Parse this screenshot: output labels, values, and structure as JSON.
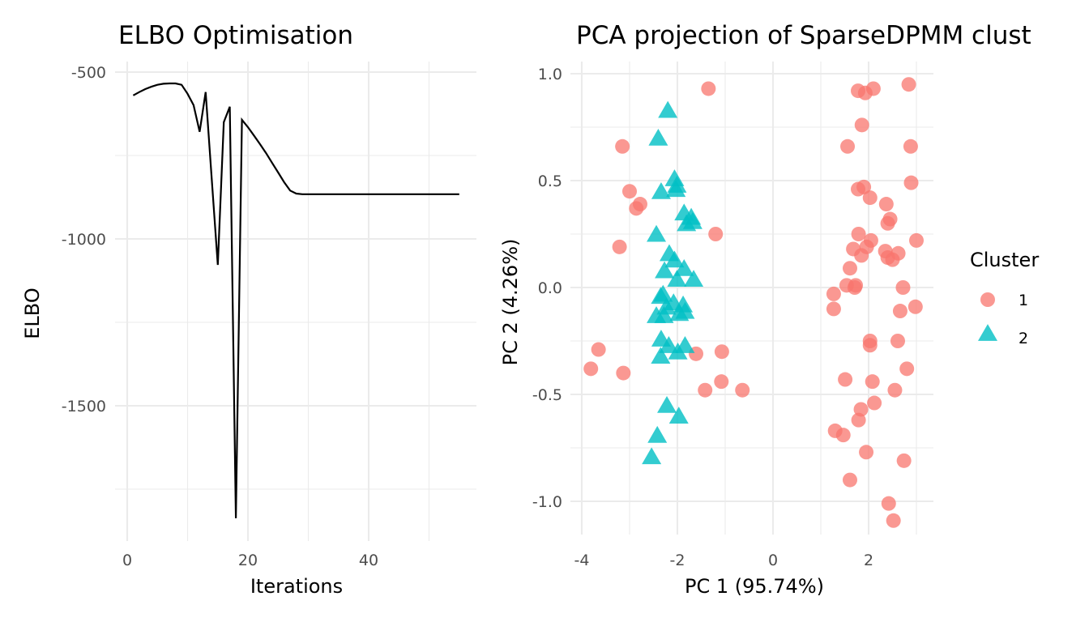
{
  "chart_data": [
    {
      "type": "line",
      "title": "ELBO Optimisation",
      "xlabel": "Iterations",
      "ylabel": "ELBO",
      "xlim": [
        -1,
        58
      ],
      "ylim": [
        -1900,
        -480
      ],
      "x_ticks": [
        0,
        20,
        40
      ],
      "x_tick_labels": [
        "0",
        "20",
        "40"
      ],
      "x_minor": [
        10,
        30,
        50
      ],
      "y_ticks": [
        -500,
        -1000,
        -1500
      ],
      "y_tick_labels": [
        "-500",
        "-1000",
        "-1500"
      ],
      "y_minor": [
        -750,
        -1250,
        -1750
      ],
      "grid": true,
      "line_color": "#000000",
      "series": [
        {
          "name": "ELBO",
          "x": [
            1,
            2,
            3,
            4,
            5,
            6,
            7,
            8,
            9,
            10,
            11,
            12,
            13,
            14,
            15,
            16,
            17,
            18,
            19,
            20,
            21,
            22,
            23,
            24,
            25,
            26,
            27,
            28,
            29,
            30,
            31,
            32,
            33,
            34,
            35,
            36,
            37,
            38,
            39,
            40,
            41,
            42,
            43,
            44,
            45,
            46,
            47,
            48,
            49,
            50,
            51,
            52,
            53,
            54,
            55
          ],
          "y": [
            -570,
            -560,
            -551,
            -544,
            -538,
            -535,
            -534,
            -534,
            -538,
            -565,
            -599,
            -679,
            -560,
            -820,
            -1078,
            -650,
            -604,
            -1837,
            -643,
            -665,
            -690,
            -716,
            -743,
            -772,
            -801,
            -830,
            -855,
            -864,
            -866,
            -866,
            -866,
            -866,
            -866,
            -866,
            -866,
            -866,
            -866,
            -866,
            -866,
            -866,
            -866,
            -866,
            -866,
            -866,
            -866,
            -866,
            -866,
            -866,
            -866,
            -866,
            -866,
            -866,
            -866,
            -866,
            -866
          ]
        }
      ]
    },
    {
      "type": "scatter",
      "title": "PCA projection of SparseDPMM clust",
      "xlabel": "PC 1 (95.74%)",
      "ylabel": "PC 2 (4.26%)",
      "xlim": [
        -4.05,
        3.4
      ],
      "ylim": [
        -1.14,
        1.05
      ],
      "x_ticks": [
        -4,
        -2,
        0,
        2
      ],
      "x_tick_labels": [
        "-4",
        "-2",
        "0",
        "2"
      ],
      "x_minor": [
        -3,
        -1,
        1,
        3
      ],
      "y_ticks": [
        1.0,
        0.5,
        0.0,
        -0.5,
        -1.0
      ],
      "y_tick_labels": [
        "1.0",
        "0.5",
        "0.0",
        "-0.5",
        "-1.0"
      ],
      "y_minor": [
        0.75,
        0.25,
        -0.25,
        -0.75
      ],
      "grid": true,
      "legend": {
        "title": "Cluster",
        "placement": "right",
        "entries": [
          {
            "label": "1",
            "shape": "circle",
            "color": "#F8766D"
          },
          {
            "label": "2",
            "shape": "triangle",
            "color": "#00BFC4"
          }
        ]
      },
      "series": [
        {
          "name": "1",
          "shape": "circle",
          "color": "#F8766D",
          "points": [
            [
              -1.35,
              0.93
            ],
            [
              -3.15,
              0.66
            ],
            [
              -3.0,
              0.45
            ],
            [
              -2.78,
              0.39
            ],
            [
              -2.86,
              0.37
            ],
            [
              -3.21,
              0.19
            ],
            [
              -1.2,
              0.25
            ],
            [
              -3.65,
              -0.29
            ],
            [
              -3.81,
              -0.38
            ],
            [
              -3.13,
              -0.4
            ],
            [
              -1.61,
              -0.31
            ],
            [
              -1.07,
              -0.3
            ],
            [
              -1.08,
              -0.44
            ],
            [
              -1.42,
              -0.48
            ],
            [
              -0.64,
              -0.48
            ],
            [
              1.78,
              0.92
            ],
            [
              2.1,
              0.93
            ],
            [
              1.93,
              0.91
            ],
            [
              2.84,
              0.95
            ],
            [
              1.86,
              0.76
            ],
            [
              1.56,
              0.66
            ],
            [
              2.88,
              0.66
            ],
            [
              2.89,
              0.49
            ],
            [
              1.78,
              0.46
            ],
            [
              1.9,
              0.47
            ],
            [
              2.03,
              0.42
            ],
            [
              2.37,
              0.39
            ],
            [
              2.45,
              0.32
            ],
            [
              2.4,
              0.3
            ],
            [
              3.0,
              0.22
            ],
            [
              1.79,
              0.25
            ],
            [
              2.05,
              0.22
            ],
            [
              1.96,
              0.19
            ],
            [
              1.68,
              0.18
            ],
            [
              1.85,
              0.15
            ],
            [
              2.35,
              0.17
            ],
            [
              2.4,
              0.14
            ],
            [
              2.5,
              0.13
            ],
            [
              2.62,
              0.16
            ],
            [
              1.61,
              0.09
            ],
            [
              1.54,
              0.01
            ],
            [
              1.73,
              0.01
            ],
            [
              1.71,
              0.0
            ],
            [
              1.27,
              -0.03
            ],
            [
              1.27,
              -0.1
            ],
            [
              2.72,
              0.0
            ],
            [
              2.66,
              -0.11
            ],
            [
              2.98,
              -0.09
            ],
            [
              2.03,
              -0.25
            ],
            [
              2.03,
              -0.27
            ],
            [
              2.61,
              -0.25
            ],
            [
              2.8,
              -0.38
            ],
            [
              1.51,
              -0.43
            ],
            [
              2.08,
              -0.44
            ],
            [
              2.55,
              -0.48
            ],
            [
              2.12,
              -0.54
            ],
            [
              1.84,
              -0.57
            ],
            [
              1.79,
              -0.62
            ],
            [
              1.3,
              -0.67
            ],
            [
              1.47,
              -0.69
            ],
            [
              1.95,
              -0.77
            ],
            [
              2.74,
              -0.81
            ],
            [
              1.61,
              -0.9
            ],
            [
              2.42,
              -1.01
            ],
            [
              2.52,
              -1.09
            ]
          ]
        },
        {
          "name": "2",
          "shape": "triangle",
          "color": "#00BFC4",
          "points": [
            [
              -2.2,
              0.82
            ],
            [
              -2.4,
              0.69
            ],
            [
              -2.06,
              0.5
            ],
            [
              -2.01,
              0.47
            ],
            [
              -2.34,
              0.44
            ],
            [
              -2.03,
              0.45
            ],
            [
              -2.44,
              0.24
            ],
            [
              -1.86,
              0.34
            ],
            [
              -1.71,
              0.32
            ],
            [
              -1.68,
              0.3
            ],
            [
              -1.81,
              0.29
            ],
            [
              -2.17,
              0.15
            ],
            [
              -2.06,
              0.12
            ],
            [
              -1.86,
              0.08
            ],
            [
              -2.27,
              0.07
            ],
            [
              -1.66,
              0.03
            ],
            [
              -2.01,
              0.03
            ],
            [
              -2.3,
              -0.04
            ],
            [
              -2.35,
              -0.05
            ],
            [
              -2.08,
              -0.08
            ],
            [
              -2.23,
              -0.1
            ],
            [
              -1.88,
              -0.09
            ],
            [
              -2.44,
              -0.14
            ],
            [
              -2.28,
              -0.14
            ],
            [
              -1.84,
              -0.12
            ],
            [
              -1.96,
              -0.13
            ],
            [
              -2.34,
              -0.25
            ],
            [
              -2.18,
              -0.28
            ],
            [
              -1.99,
              -0.31
            ],
            [
              -1.84,
              -0.28
            ],
            [
              -2.35,
              -0.33
            ],
            [
              -2.22,
              -0.56
            ],
            [
              -1.97,
              -0.61
            ],
            [
              -2.42,
              -0.7
            ],
            [
              -2.54,
              -0.8
            ]
          ]
        }
      ]
    }
  ]
}
